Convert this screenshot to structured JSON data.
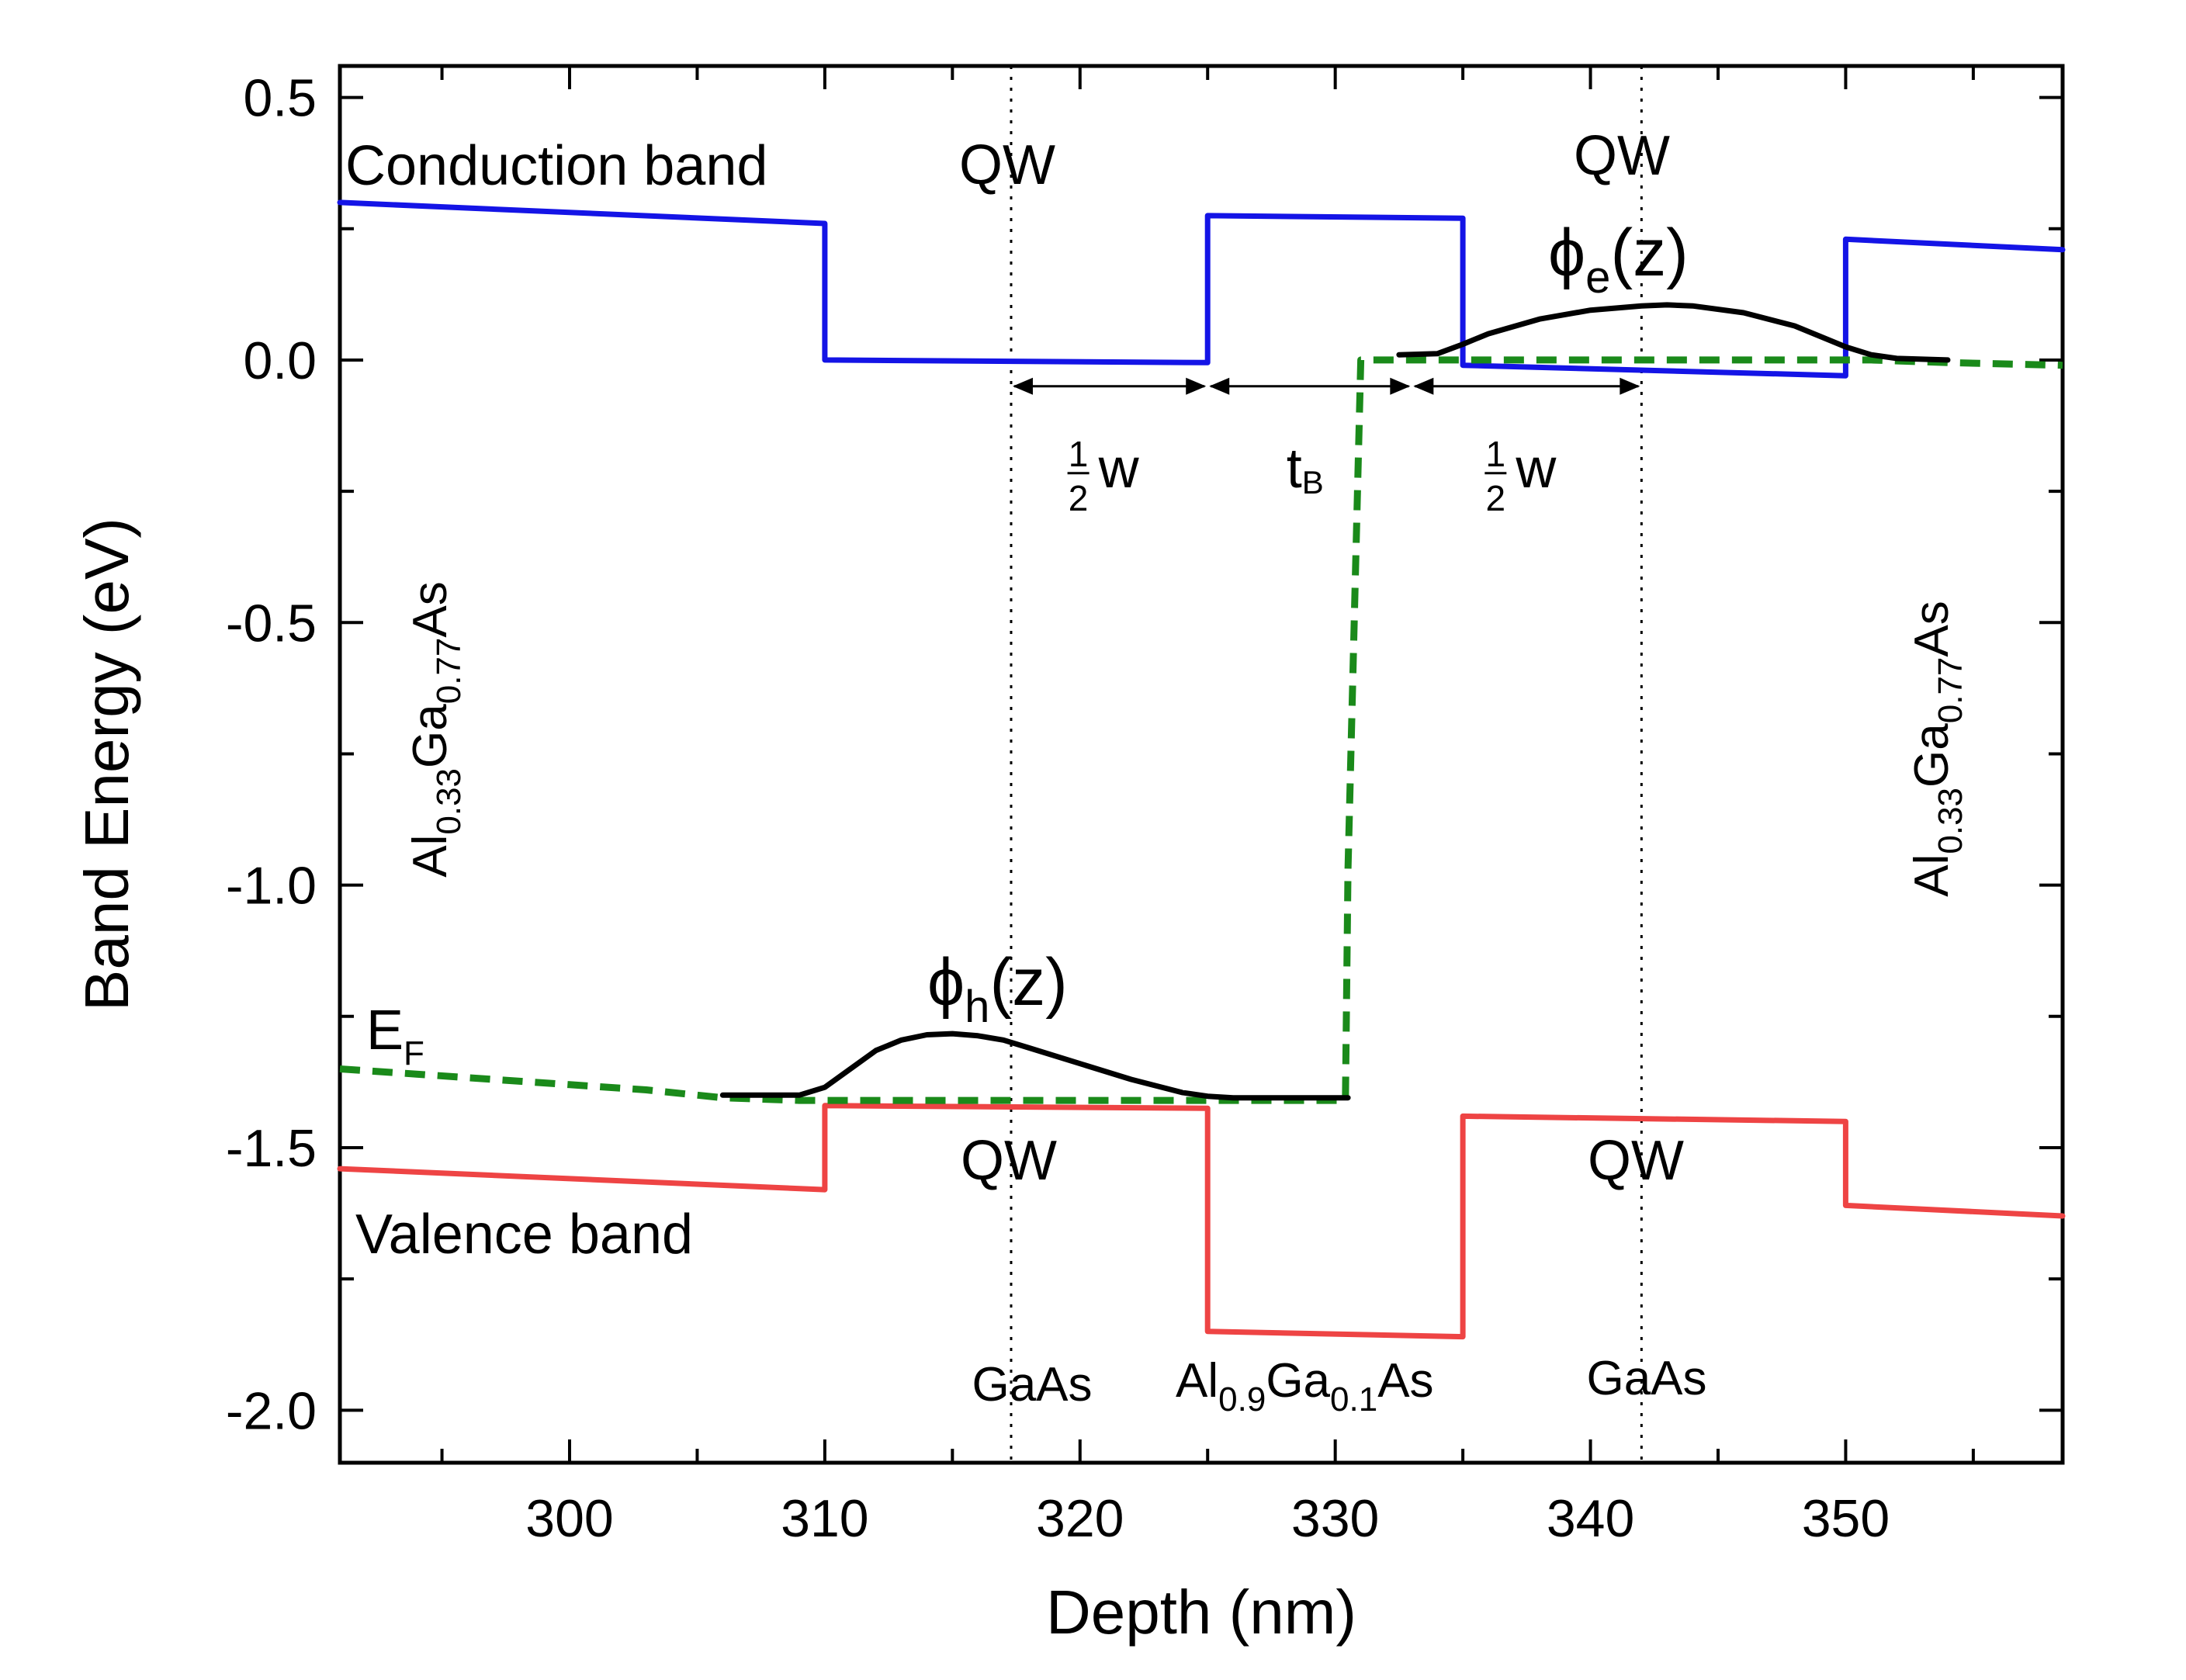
{
  "chart_data": {
    "type": "line",
    "xlabel": "Depth (nm)",
    "ylabel": "Band Energy (eV)",
    "xlim": [
      291,
      358.5
    ],
    "ylim": [
      -2.1,
      0.56
    ],
    "xticks": [
      300,
      310,
      320,
      330,
      340,
      350
    ],
    "xtick_labels": [
      "300",
      "310",
      "320",
      "330",
      "340",
      "350"
    ],
    "yticks": [
      0.5,
      0.0,
      -0.5,
      -1.0,
      -1.5,
      -2.0
    ],
    "ytick_labels": [
      "0.5",
      "0.0",
      "-0.5",
      "-1.0",
      "-1.5",
      "-2.0"
    ],
    "colors": {
      "conduction": "#1414e6",
      "valence": "#ee4444",
      "fermi": "#1a8a1a",
      "wavefunction": "#000000"
    },
    "series": [
      {
        "name": "Conduction band",
        "x": [
          291,
          310,
          310,
          325,
          325,
          335,
          335,
          350,
          350,
          358.5
        ],
        "y": [
          0.3,
          0.26,
          0.0,
          -0.005,
          0.275,
          0.27,
          -0.01,
          -0.03,
          0.23,
          0.21
        ]
      },
      {
        "name": "Valence band",
        "x": [
          291,
          310,
          310,
          325,
          325,
          335,
          335,
          350,
          350,
          358.5
        ],
        "y": [
          -1.54,
          -1.58,
          -1.42,
          -1.425,
          -1.85,
          -1.86,
          -1.44,
          -1.45,
          -1.61,
          -1.63
        ]
      },
      {
        "name": "E_F",
        "x": [
          291,
          294,
          297,
          300,
          303,
          306,
          309,
          312,
          315,
          318,
          321,
          324,
          327,
          330.4,
          330.5,
          331,
          333,
          336,
          339,
          342,
          345,
          348,
          351,
          354,
          358.5
        ],
        "y": [
          -1.35,
          -1.36,
          -1.37,
          -1.38,
          -1.39,
          -1.405,
          -1.41,
          -1.41,
          -1.41,
          -1.41,
          -1.41,
          -1.41,
          -1.41,
          -1.41,
          -0.97,
          0.0,
          0.0,
          0.0,
          0.0,
          0.0,
          0.0,
          0.0,
          0.0,
          -0.005,
          -0.01
        ]
      },
      {
        "name": "phi_h(z)",
        "x": [
          306,
          309,
          310,
          311,
          312,
          313,
          314,
          315,
          316,
          317,
          318,
          320,
          322,
          324,
          325,
          326,
          328,
          330.5
        ],
        "y": [
          -1.4,
          -1.4,
          -1.385,
          -1.35,
          -1.315,
          -1.295,
          -1.285,
          -1.283,
          -1.287,
          -1.295,
          -1.31,
          -1.34,
          -1.37,
          -1.395,
          -1.402,
          -1.405,
          -1.405,
          -1.405
        ]
      },
      {
        "name": "phi_e(z)",
        "x": [
          332.5,
          334,
          335,
          336,
          338,
          340,
          342,
          343,
          344,
          346,
          348,
          349,
          350,
          351,
          352,
          354
        ],
        "y": [
          0.01,
          0.012,
          0.03,
          0.05,
          0.078,
          0.095,
          0.103,
          0.105,
          0.103,
          0.09,
          0.065,
          0.045,
          0.025,
          0.01,
          0.003,
          0.0
        ]
      }
    ],
    "vlines": [
      317.3,
      342
    ],
    "dimension_arrows": [
      {
        "from": 317.3,
        "to": 325,
        "y": -0.05,
        "label": "w",
        "frac_num": "1",
        "frac_den": "2"
      },
      {
        "from": 325,
        "to": 333,
        "y": -0.05,
        "label": "t",
        "sub": "B"
      },
      {
        "from": 333,
        "to": 342,
        "y": -0.05,
        "label": "w",
        "frac_num": "1",
        "frac_den": "2"
      }
    ],
    "annotations": {
      "conduction_band": "Conduction band",
      "valence_band": "Valence band",
      "qw": "QW",
      "gaas": "GaAs",
      "fermi_main": "E",
      "fermi_sub": "F",
      "phi": "ϕ",
      "phi_h_sub": "h",
      "phi_e_sub": "e",
      "phi_arg": "(z)",
      "alloy_left": {
        "al": "Al",
        "al_sub": "0.33",
        "ga": "Ga",
        "ga_sub": "0.77",
        "as": "As"
      },
      "alloy_right": {
        "al": "Al",
        "al_sub": "0.33",
        "ga": "Ga",
        "ga_sub": "0.77",
        "as": "As"
      },
      "barrier": {
        "al": "Al",
        "al_sub": "0.9",
        "ga": "Ga",
        "ga_sub": "0.1",
        "as": "As"
      }
    }
  }
}
